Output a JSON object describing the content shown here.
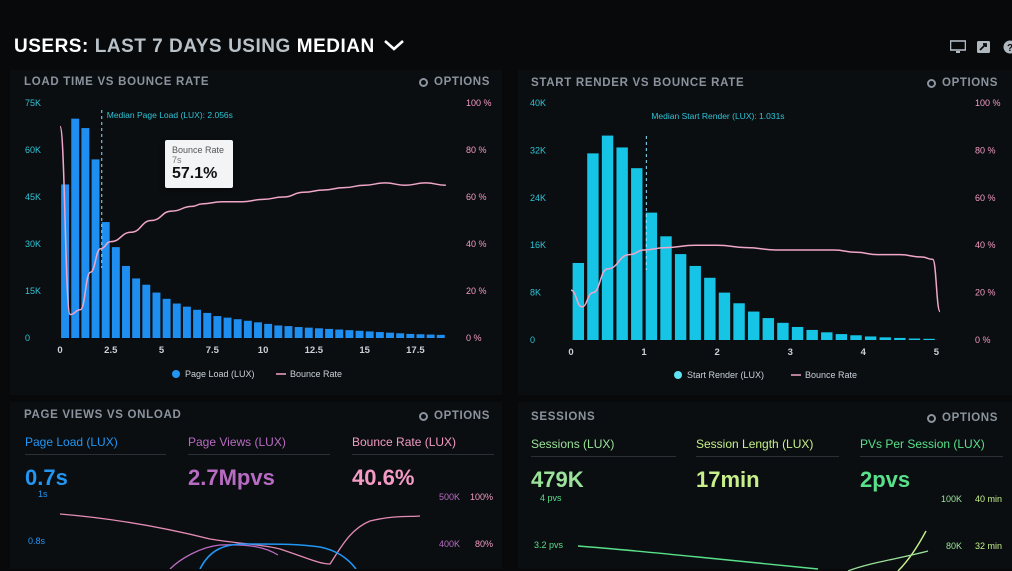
{
  "header": {
    "part1": "USERS:",
    "part2": "LAST 7 DAYS",
    "part3": "USING",
    "part4": "MEDIAN"
  },
  "icons": {
    "monitor": "monitor-icon",
    "share": "share-icon",
    "help": "help-icon",
    "options": "gear-icon",
    "dropdown": "chevron-down-icon"
  },
  "colors": {
    "blue": "#2196f3",
    "cyan": "#2ad0ea",
    "pink": "#f39bc4",
    "purple": "#b86bc2",
    "green": "#9be39a",
    "lime": "#c7f08a"
  },
  "panels": {
    "load": {
      "title": "LOAD TIME VS BOUNCE RATE",
      "options": "OPTIONS",
      "median_label": "Median Page Load (LUX): 2.056s",
      "tooltip": {
        "title": "Bounce Rate",
        "x": "7s",
        "value": "57.1%"
      },
      "legend": [
        "Page Load (LUX)",
        "Bounce Rate"
      ]
    },
    "render": {
      "title": "START RENDER VS BOUNCE RATE",
      "options": "OPTIONS",
      "median_label": "Median Start Render (LUX): 1.031s",
      "legend": [
        "Start Render (LUX)",
        "Bounce Rate"
      ]
    },
    "pageviews": {
      "title": "PAGE VIEWS VS ONLOAD",
      "options": "OPTIONS",
      "metrics": [
        {
          "label": "Page Load (LUX)",
          "value": "0.7s"
        },
        {
          "label": "Page Views (LUX)",
          "value": "2.7Mpvs"
        },
        {
          "label": "Bounce Rate (LUX)",
          "value": "40.6%"
        }
      ],
      "left_ticks": [
        "1s",
        "0.8s"
      ],
      "right_ticks_a": [
        "500K",
        "400K"
      ],
      "right_ticks_b": [
        "100%",
        "80%"
      ]
    },
    "sessions": {
      "title": "SESSIONS",
      "options": "OPTIONS",
      "metrics": [
        {
          "label": "Sessions (LUX)",
          "value": "479K"
        },
        {
          "label": "Session Length (LUX)",
          "value": "17min"
        },
        {
          "label": "PVs Per Session (LUX)",
          "value": "2pvs"
        }
      ],
      "left_ticks": [
        "4 pvs",
        "3.2 pvs"
      ],
      "right_ticks_a": [
        "100K",
        "80K"
      ],
      "right_ticks_b": [
        "40 min",
        "32 min"
      ]
    }
  },
  "chart_data": [
    {
      "type": "bar",
      "x": [
        0.25,
        0.75,
        1.25,
        1.75,
        2.25,
        2.75,
        3.25,
        3.75,
        4.25,
        4.75,
        5.25,
        5.75,
        6.25,
        6.75,
        7.25,
        7.75,
        8.25,
        8.75,
        9.25,
        9.75,
        10.25,
        10.75,
        11.25,
        11.75,
        12.25,
        12.75,
        13.25,
        13.75,
        14.25,
        14.75,
        15.25,
        15.75,
        16.25,
        16.75,
        17.25,
        17.75,
        18.25,
        18.75
      ],
      "series": [
        {
          "name": "Page Load (LUX)",
          "values": [
            49000,
            70000,
            67000,
            57000,
            37000,
            29000,
            23000,
            19000,
            17000,
            14500,
            12500,
            11000,
            10000,
            9000,
            8000,
            7000,
            6500,
            6000,
            5500,
            5000,
            4500,
            4000,
            3800,
            3500,
            3300,
            3100,
            2900,
            2700,
            2500,
            2300,
            2100,
            1900,
            1700,
            1500,
            1300,
            1200,
            1100,
            1000
          ]
        },
        {
          "name": "Bounce Rate",
          "x": [
            0.0,
            0.5,
            1.0,
            1.5,
            2.0,
            2.5,
            3.5,
            4.5,
            5.5,
            6.5,
            7.0,
            8.0,
            9.0,
            10.0,
            11.0,
            12.0,
            13.0,
            14.0,
            15.0,
            16.0,
            17.0,
            18.0,
            19.0
          ],
          "values": [
            90,
            10,
            12,
            28,
            38,
            41,
            45,
            50,
            54,
            56,
            57.1,
            58,
            58,
            59,
            60,
            62,
            63,
            64,
            65,
            66,
            65,
            66,
            65
          ]
        }
      ],
      "xlim": [
        0,
        19.5
      ],
      "ylim": [
        0,
        75000
      ],
      "y2lim": [
        0,
        100
      ],
      "x_ticks": [
        "0",
        "2.5",
        "5",
        "7.5",
        "10",
        "12.5",
        "15",
        "17.5"
      ],
      "y_ticks": [
        "0",
        "15K",
        "30K",
        "45K",
        "60K",
        "75K"
      ],
      "y2_ticks": [
        "0 %",
        "20 %",
        "40 %",
        "60 %",
        "80 %",
        "100 %"
      ],
      "median": 2.056,
      "legend": "bottom"
    },
    {
      "type": "bar",
      "x": [
        0.1,
        0.3,
        0.5,
        0.7,
        0.9,
        1.1,
        1.3,
        1.5,
        1.7,
        1.9,
        2.1,
        2.3,
        2.5,
        2.7,
        2.9,
        3.1,
        3.3,
        3.5,
        3.7,
        3.9,
        4.1,
        4.3,
        4.5,
        4.7,
        4.9
      ],
      "series": [
        {
          "name": "Start Render (LUX)",
          "values": [
            13000,
            31500,
            34500,
            32500,
            29000,
            21500,
            17500,
            14500,
            12500,
            10500,
            8000,
            6200,
            4800,
            3700,
            2900,
            2200,
            1700,
            1300,
            1000,
            800,
            600,
            450,
            350,
            250,
            200
          ]
        },
        {
          "name": "Bounce Rate",
          "x": [
            0.0,
            0.15,
            0.3,
            0.5,
            0.8,
            1.0,
            1.3,
            1.7,
            2.0,
            2.4,
            2.8,
            3.2,
            3.6,
            3.9,
            4.2,
            4.5,
            4.8,
            4.95,
            5.05
          ],
          "values": [
            21,
            14,
            20,
            30,
            36,
            38,
            39,
            40,
            40,
            39,
            38,
            38,
            38,
            37,
            36,
            36,
            35,
            34,
            12
          ]
        }
      ],
      "xlim": [
        0,
        5.2
      ],
      "ylim": [
        0,
        40000
      ],
      "y2lim": [
        0,
        100
      ],
      "x_ticks": [
        "0",
        "1",
        "2",
        "3",
        "4",
        "5"
      ],
      "y_ticks": [
        "0",
        "8K",
        "16K",
        "24K",
        "32K",
        "40K"
      ],
      "y2_ticks": [
        "0 %",
        "20 %",
        "40 %",
        "60 %",
        "80 %",
        "100 %"
      ],
      "median": 1.031,
      "legend": "bottom"
    }
  ]
}
